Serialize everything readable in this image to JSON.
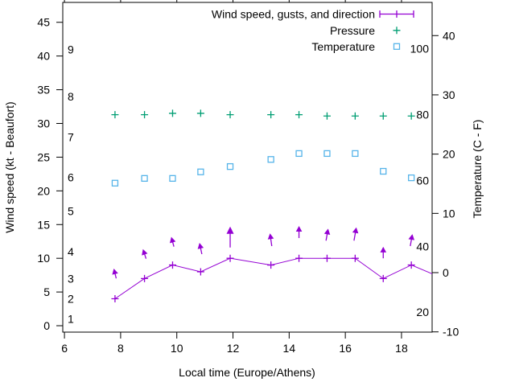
{
  "colors": {
    "wind": "#9400d3",
    "pressure": "#009e73",
    "temperature": "#56b4e9",
    "axis": "#000000",
    "background": "#ffffff"
  },
  "chart_data": {
    "type": "line",
    "title": "",
    "xlabel": "Local time (Europe/Athens)",
    "grid": "off",
    "legend_position": "top-right-inside",
    "x_range": [
      5.94,
      19.09
    ],
    "x_tick_labels": [
      "6",
      "8",
      "10",
      "12",
      "14",
      "16",
      "18"
    ],
    "x_tick_values": [
      6,
      8,
      10,
      12,
      14,
      16,
      18
    ],
    "left_axis": {
      "label": "Wind speed (kt - Beaufort)",
      "unit": "kt",
      "range": [
        -0.95,
        47.95
      ],
      "tick_labels": [
        "0",
        "5",
        "10",
        "15",
        "20",
        "25",
        "30",
        "35",
        "40",
        "45"
      ],
      "tick_values": [
        0,
        5,
        10,
        15,
        20,
        25,
        30,
        35,
        40,
        45
      ]
    },
    "beaufort_scale": {
      "labels": [
        "1",
        "2",
        "3",
        "4",
        "5",
        "6",
        "7",
        "8",
        "9"
      ],
      "kt_positions": [
        1,
        4,
        7,
        11,
        17,
        22,
        28,
        34,
        41
      ]
    },
    "right_axis": {
      "label": "Temperature (C - F)",
      "unit": "C",
      "range": [
        -10.04,
        45.6
      ],
      "tick_labels": [
        "-10",
        "0",
        "10",
        "20",
        "30",
        "40"
      ],
      "tick_values": [
        -10,
        0,
        10,
        20,
        30,
        40
      ]
    },
    "fahrenheit_scale": {
      "labels": [
        "100",
        "80",
        "60",
        "40",
        "20"
      ],
      "f_positions": [
        100,
        80,
        60,
        40,
        20
      ]
    },
    "x": [
      7.8,
      8.85,
      9.85,
      10.85,
      11.9,
      13.35,
      14.35,
      15.35,
      16.35,
      17.35,
      18.35
    ],
    "series": [
      {
        "name": "Wind speed, gusts, and direction",
        "color": "#9400d3",
        "style": "line",
        "marker": "plus",
        "wind_kt": [
          4,
          7,
          9,
          8,
          10,
          9,
          10,
          10,
          10,
          7,
          9
        ],
        "line_exit": {
          "t": 19.09,
          "kt": 7.7
        },
        "gust_kt": [
          8.5,
          11.4,
          13.2,
          12.3,
          14.7,
          13.7,
          14.8,
          14.4,
          14.6,
          11.7,
          13.6
        ],
        "arrow_base_kt": [
          7.0,
          9.9,
          11.7,
          10.6,
          11.6,
          11.8,
          13.0,
          12.6,
          12.6,
          10.0,
          11.8
        ],
        "arrow_tilt_deg": [
          -14,
          -18,
          -15,
          -12,
          0,
          -8,
          0,
          10,
          10,
          0,
          10
        ]
      },
      {
        "name": "Pressure",
        "color": "#009e73",
        "style": "points",
        "marker": "plus",
        "y_on_kt_axis": [
          31.3,
          31.3,
          31.5,
          31.5,
          31.3,
          31.3,
          31.3,
          31.1,
          31.1,
          31.1,
          31.1
        ],
        "note": "plotted without a visible numeric pressure scale"
      },
      {
        "name": "Temperature",
        "color": "#56b4e9",
        "style": "points",
        "marker": "square",
        "temp_c": [
          15.1,
          15.9,
          15.9,
          17.0,
          17.9,
          19.1,
          20.1,
          20.1,
          20.1,
          17.1,
          16.0
        ]
      }
    ],
    "legend_entries": [
      "Wind speed, gusts, and direction",
      "Pressure",
      "Temperature"
    ]
  }
}
